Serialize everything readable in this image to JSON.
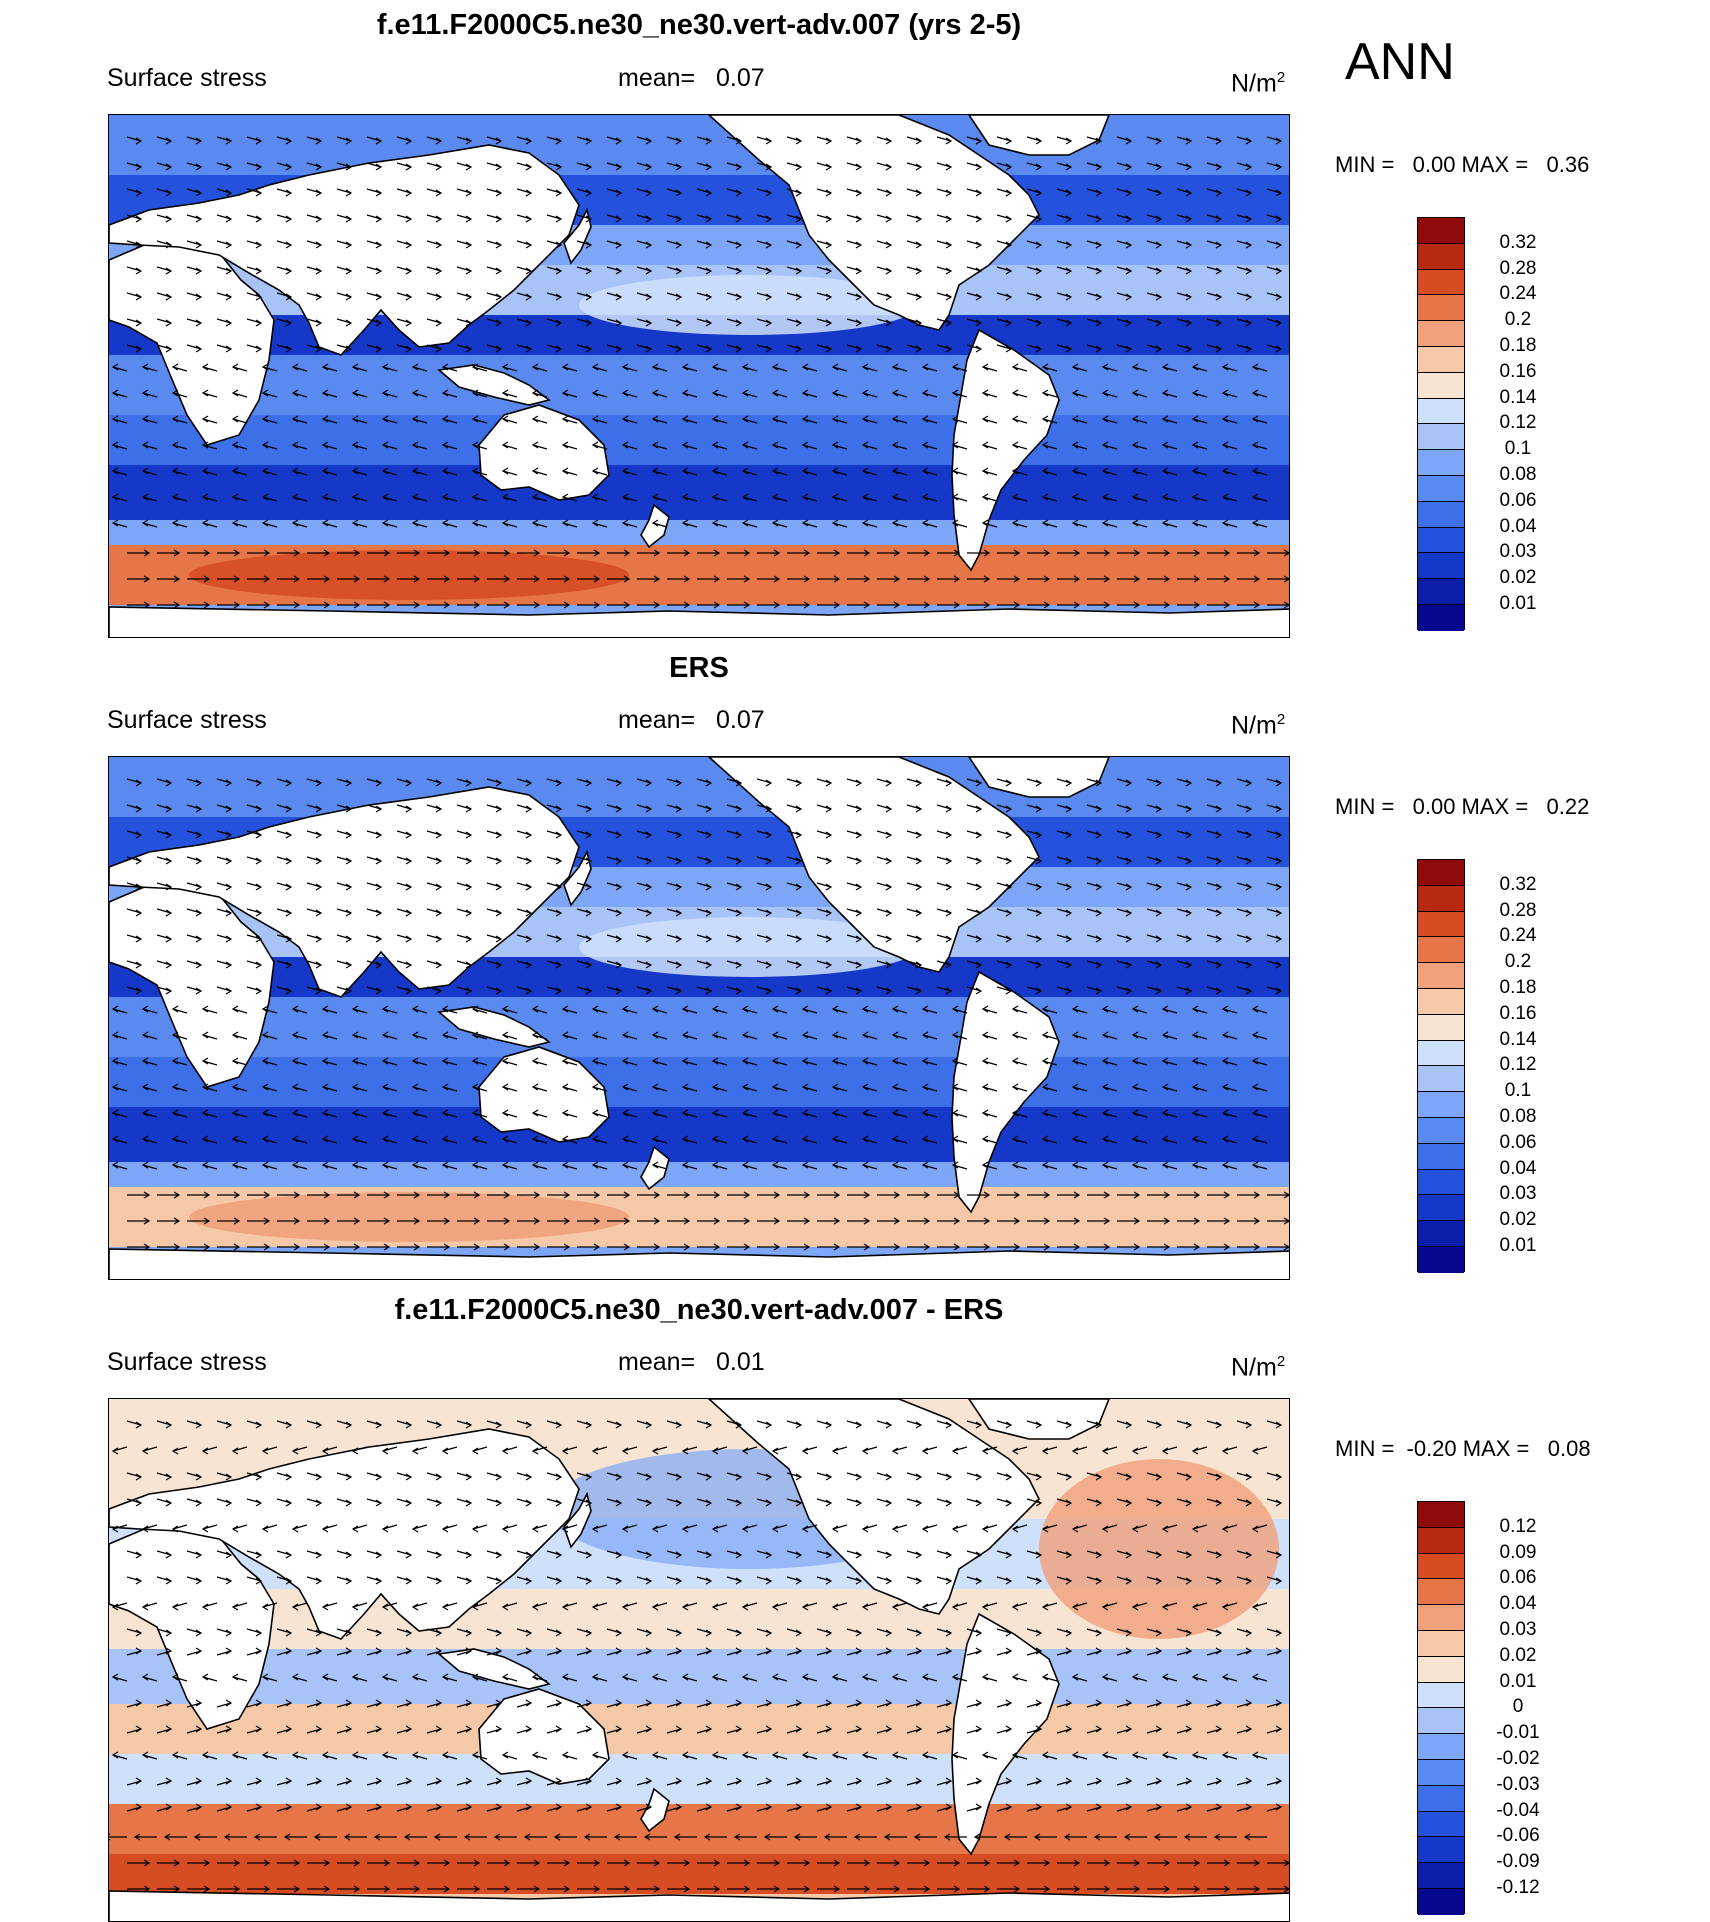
{
  "header": {
    "season": "ANN"
  },
  "colors": {
    "land": "#ffffff",
    "coast": "#000000",
    "arrow": "#000000",
    "abs_scale": [
      "#08088f",
      "#0a1ea8",
      "#1538c8",
      "#2452dc",
      "#3d6fe8",
      "#5a8af0",
      "#7ea6f6",
      "#a7c3f8",
      "#cfe0fb",
      "#f7e4d2",
      "#f5c8a8",
      "#f0a07a",
      "#e67648",
      "#d64d24",
      "#b82a10",
      "#8f0a0a"
    ],
    "diff_scale": [
      "#08088f",
      "#0a1ea8",
      "#1538c8",
      "#2452dc",
      "#3d6fe8",
      "#5a8af0",
      "#7ea6f6",
      "#a7c3f8",
      "#cfe0fb",
      "#f7e4d2",
      "#f5c8a8",
      "#f0a07a",
      "#e67648",
      "#d64d24",
      "#b82a10",
      "#8f0a0a"
    ]
  },
  "panels": [
    {
      "id": "model",
      "title": "f.e11.F2000C5.ne30_ne30.vert-adv.007 (yrs 2-5)",
      "variable": "Surface stress",
      "mean_label": "mean=",
      "mean_value": "0.07",
      "units": "N/m",
      "units_exp": "2",
      "minmax": "MIN =   0.00 MAX =   0.36",
      "colorbar_labels": [
        "0.32",
        "0.28",
        "0.24",
        "0.2",
        "0.18",
        "0.16",
        "0.14",
        "0.12",
        "0.1",
        "0.08",
        "0.06",
        "0.04",
        "0.03",
        "0.02",
        "0.01"
      ]
    },
    {
      "id": "obs",
      "title": "ERS",
      "variable": "Surface stress",
      "mean_label": "mean=",
      "mean_value": "0.07",
      "units": "N/m",
      "units_exp": "2",
      "minmax": "MIN =   0.00 MAX =   0.22",
      "colorbar_labels": [
        "0.32",
        "0.28",
        "0.24",
        "0.2",
        "0.18",
        "0.16",
        "0.14",
        "0.12",
        "0.1",
        "0.08",
        "0.06",
        "0.04",
        "0.03",
        "0.02",
        "0.01"
      ]
    },
    {
      "id": "diff",
      "title": "f.e11.F2000C5.ne30_ne30.vert-adv.007 - ERS",
      "variable": "Surface stress",
      "mean_label": "mean=",
      "mean_value": "0.01",
      "units": "N/m",
      "units_exp": "2",
      "minmax": "MIN =  -0.20 MAX =   0.08",
      "colorbar_labels": [
        "0.12",
        "0.09",
        "0.06",
        "0.04",
        "0.03",
        "0.02",
        "0.01",
        "0",
        "-0.01",
        "-0.02",
        "-0.03",
        "-0.04",
        "-0.06",
        "-0.09",
        "-0.12"
      ]
    }
  ]
}
